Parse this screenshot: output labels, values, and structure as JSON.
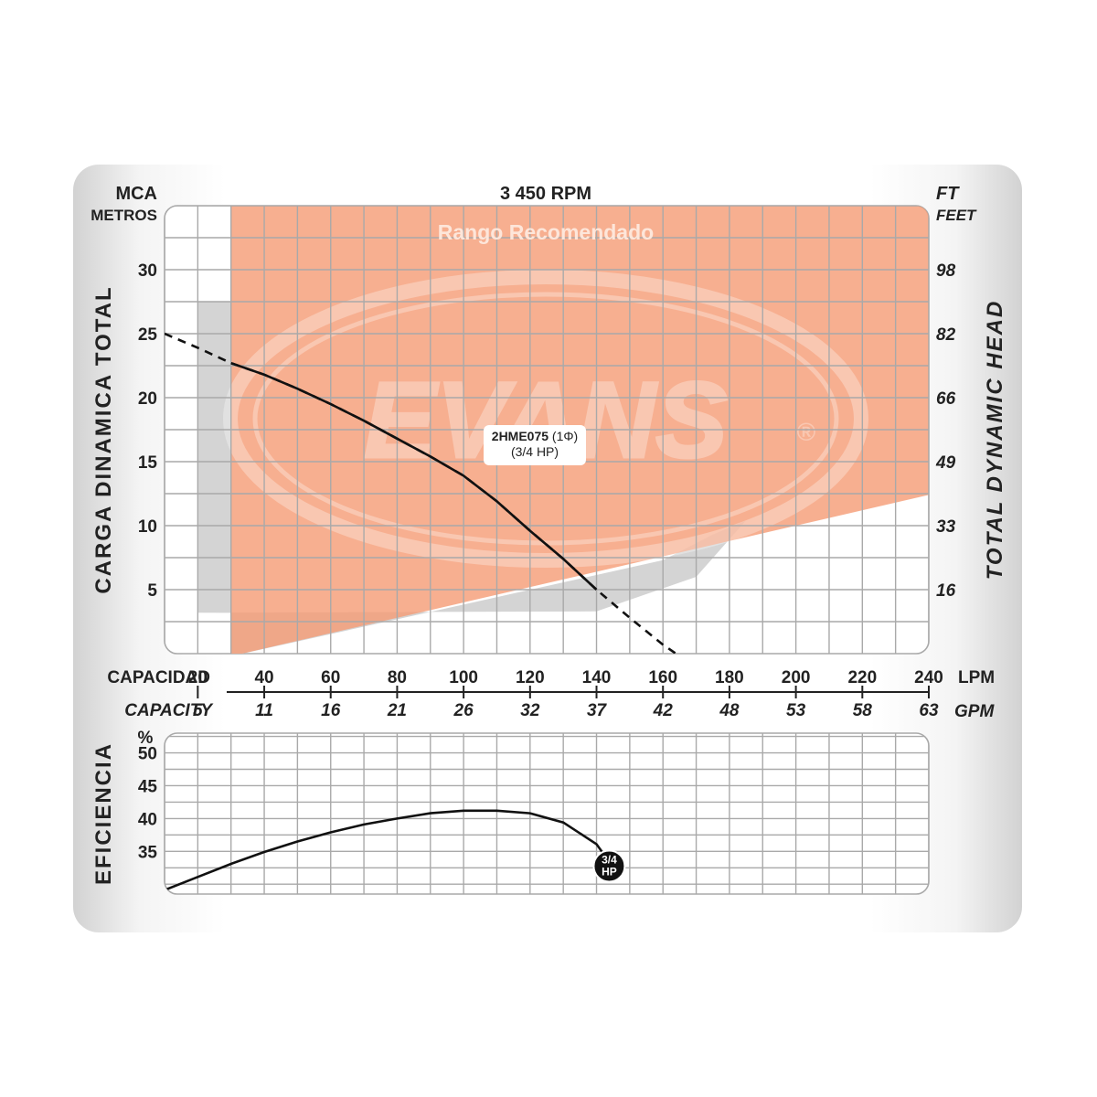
{
  "header": {
    "left_unit": "MCA",
    "left_unit_sub": "METROS",
    "title": "3 450 RPM",
    "right_unit": "FT",
    "right_unit_sub": "FEET"
  },
  "labels": {
    "recommended_range": "Rango Recomendado",
    "left_axis_title": "CARGA  DINAMICA  TOTAL",
    "right_axis_title": "TOTAL  DYNAMIC  HEAD",
    "watermark": "EVANS",
    "watermark_mark": "®",
    "capacity_es": "CAPACIDAD",
    "capacity_en": "CAPACITY",
    "lpm_unit": "LPM",
    "gpm_unit": "GPM",
    "efficiency_title": "EFICIENCIA",
    "efficiency_unit": "%",
    "model_line1_a": "2HME075",
    "model_line1_b": " (1Φ)",
    "model_line2": "(3/4 HP)",
    "badge_line1": "3/4",
    "badge_line2": "HP"
  },
  "colors": {
    "recommended_fill": "#f59d77",
    "recommended_title": "#fde6da",
    "grid": "#a9a9a9",
    "curve": "#111111",
    "shadow": "#d4d4d4"
  },
  "chart_data": [
    {
      "type": "line",
      "title": "3 450 RPM",
      "xlabel": "CAPACIDAD / CAPACITY",
      "ylabel": "CARGA DINAMICA TOTAL (MCA METROS)",
      "y2label": "TOTAL DYNAMIC HEAD (FT FEET)",
      "x_unit": "LPM",
      "xlim": [
        10,
        240
      ],
      "ylim": [
        0,
        35
      ],
      "x_ticks": [
        20,
        40,
        60,
        80,
        100,
        120,
        140,
        160,
        180,
        200,
        220,
        240
      ],
      "x2_ticks": [
        "5",
        "11",
        "16",
        "21",
        "26",
        "32",
        "37",
        "42",
        "48",
        "53",
        "58",
        "63"
      ],
      "x2_unit": "GPM",
      "y_ticks": [
        5,
        10,
        15,
        20,
        25,
        30
      ],
      "y2_ticks": [
        "16",
        "33",
        "49",
        "66",
        "82",
        "98"
      ],
      "grid": true,
      "recommended_range": {
        "label": "Rango Recomendado",
        "x_min": 30,
        "x_max": 240,
        "lower_boundary": [
          [
            30,
            -0.2
          ],
          [
            240,
            12.4
          ]
        ]
      },
      "series": [
        {
          "name": "2HME075 (1Φ) (3/4 HP)",
          "x": [
            10,
            20,
            30,
            40,
            50,
            60,
            70,
            80,
            90,
            100,
            110,
            120,
            130,
            140,
            150,
            160,
            165
          ],
          "y": [
            25.0,
            23.9,
            22.7,
            21.8,
            20.7,
            19.5,
            18.2,
            16.8,
            15.4,
            13.9,
            11.9,
            9.6,
            7.4,
            5.0,
            2.8,
            0.7,
            -0.2
          ],
          "solid_x_range": [
            30,
            140
          ]
        }
      ]
    },
    {
      "type": "line",
      "ylabel": "EFICIENCIA (%)",
      "xlim": [
        10,
        240
      ],
      "ylim": [
        28.5,
        53
      ],
      "y_ticks": [
        35,
        40,
        45,
        50
      ],
      "grid": true,
      "series": [
        {
          "name": "3/4 HP",
          "x": [
            10,
            20,
            30,
            40,
            50,
            60,
            70,
            80,
            90,
            100,
            110,
            120,
            130,
            140,
            143
          ],
          "y": [
            29.1,
            31.1,
            33.1,
            34.9,
            36.5,
            37.9,
            39.1,
            40.0,
            40.8,
            41.2,
            41.2,
            40.8,
            39.4,
            36.1,
            34.0
          ]
        }
      ]
    }
  ]
}
